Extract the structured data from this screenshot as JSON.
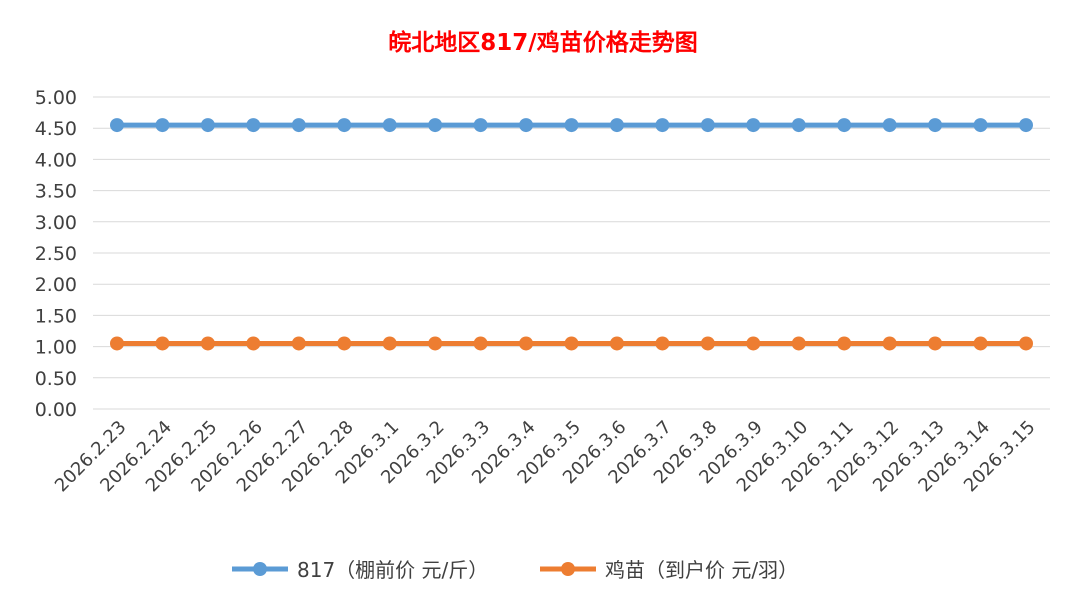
{
  "chart_data": {
    "type": "line",
    "title": "皖北地区817/鸡苗价格走势图",
    "categories": [
      "2026.2.23",
      "2026.2.24",
      "2026.2.25",
      "2026.2.26",
      "2026.2.27",
      "2026.2.28",
      "2026.3.1",
      "2026.3.2",
      "2026.3.3",
      "2026.3.4",
      "2026.3.5",
      "2026.3.6",
      "2026.3.7",
      "2026.3.8",
      "2026.3.9",
      "2026.3.10",
      "2026.3.11",
      "2026.3.12",
      "2026.3.13",
      "2026.3.14",
      "2026.3.15"
    ],
    "y_ticks": [
      "0.00",
      "0.50",
      "1.00",
      "1.50",
      "2.00",
      "2.50",
      "3.00",
      "3.50",
      "4.00",
      "4.50",
      "5.00"
    ],
    "ylim": [
      0,
      5
    ],
    "grid": true,
    "legend_position": "bottom",
    "series": [
      {
        "name": "817（棚前价 元/斤）",
        "color": "#5B9BD5",
        "values": [
          4.55,
          4.55,
          4.55,
          4.55,
          4.55,
          4.55,
          4.55,
          4.55,
          4.55,
          4.55,
          4.55,
          4.55,
          4.55,
          4.55,
          4.55,
          4.55,
          4.55,
          4.55,
          4.55,
          4.55,
          4.55
        ]
      },
      {
        "name": "鸡苗（到户价 元/羽）",
        "color": "#ED7D31",
        "values": [
          1.05,
          1.05,
          1.05,
          1.05,
          1.05,
          1.05,
          1.05,
          1.05,
          1.05,
          1.05,
          1.05,
          1.05,
          1.05,
          1.05,
          1.05,
          1.05,
          1.05,
          1.05,
          1.05,
          1.05,
          1.05
        ]
      }
    ],
    "title_color": "#FF0000"
  }
}
